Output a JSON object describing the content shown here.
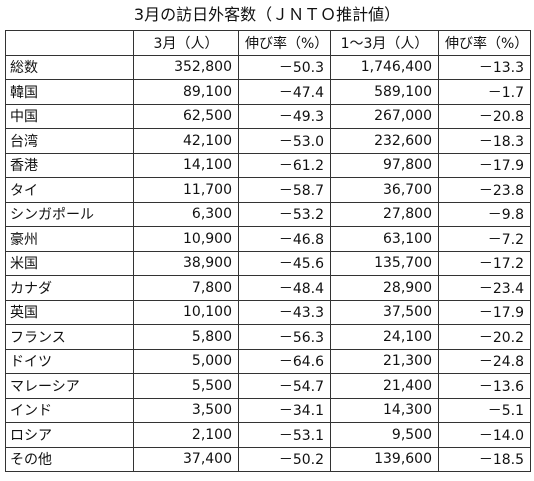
{
  "title": "3月の訪日外客数（ＪＮＴＯ推計値）",
  "table": {
    "header": [
      "",
      "3月（人）",
      "伸び率（%）",
      "1～3月（人）",
      "伸び率（%）"
    ],
    "rows": [
      [
        "総数",
        "352,800",
        "－50.3",
        "1,746,400",
        "－13.3"
      ],
      [
        "韓国",
        "89,100",
        "－47.4",
        "589,100",
        "－1.7"
      ],
      [
        "中国",
        "62,500",
        "－49.3",
        "267,000",
        "－20.8"
      ],
      [
        "台湾",
        "42,100",
        "－53.0",
        "232,600",
        "－18.3"
      ],
      [
        "香港",
        "14,100",
        "－61.2",
        "97,800",
        "－17.9"
      ],
      [
        "タイ",
        "11,700",
        "－58.7",
        "36,700",
        "－23.8"
      ],
      [
        "シンガポール",
        "6,300",
        "－53.2",
        "27,800",
        "－9.8"
      ],
      [
        "豪州",
        "10,900",
        "－46.8",
        "63,100",
        "－7.2"
      ],
      [
        "米国",
        "38,900",
        "－45.6",
        "135,700",
        "－17.2"
      ],
      [
        "カナダ",
        "7,800",
        "－48.4",
        "28,900",
        "－23.4"
      ],
      [
        "英国",
        "10,100",
        "－43.3",
        "37,500",
        "－17.9"
      ],
      [
        "フランス",
        "5,800",
        "－56.3",
        "24,100",
        "－20.2"
      ],
      [
        "ドイツ",
        "5,000",
        "－64.6",
        "21,300",
        "－24.8"
      ],
      [
        "マレーシア",
        "5,500",
        "－54.7",
        "21,400",
        "－13.6"
      ],
      [
        "インド",
        "3,500",
        "－34.1",
        "14,300",
        "－5.1"
      ],
      [
        "ロシア",
        "2,100",
        "－53.1",
        "9,500",
        "－14.0"
      ],
      [
        "その他",
        "37,400",
        "－50.2",
        "139,600",
        "－18.5"
      ]
    ]
  }
}
